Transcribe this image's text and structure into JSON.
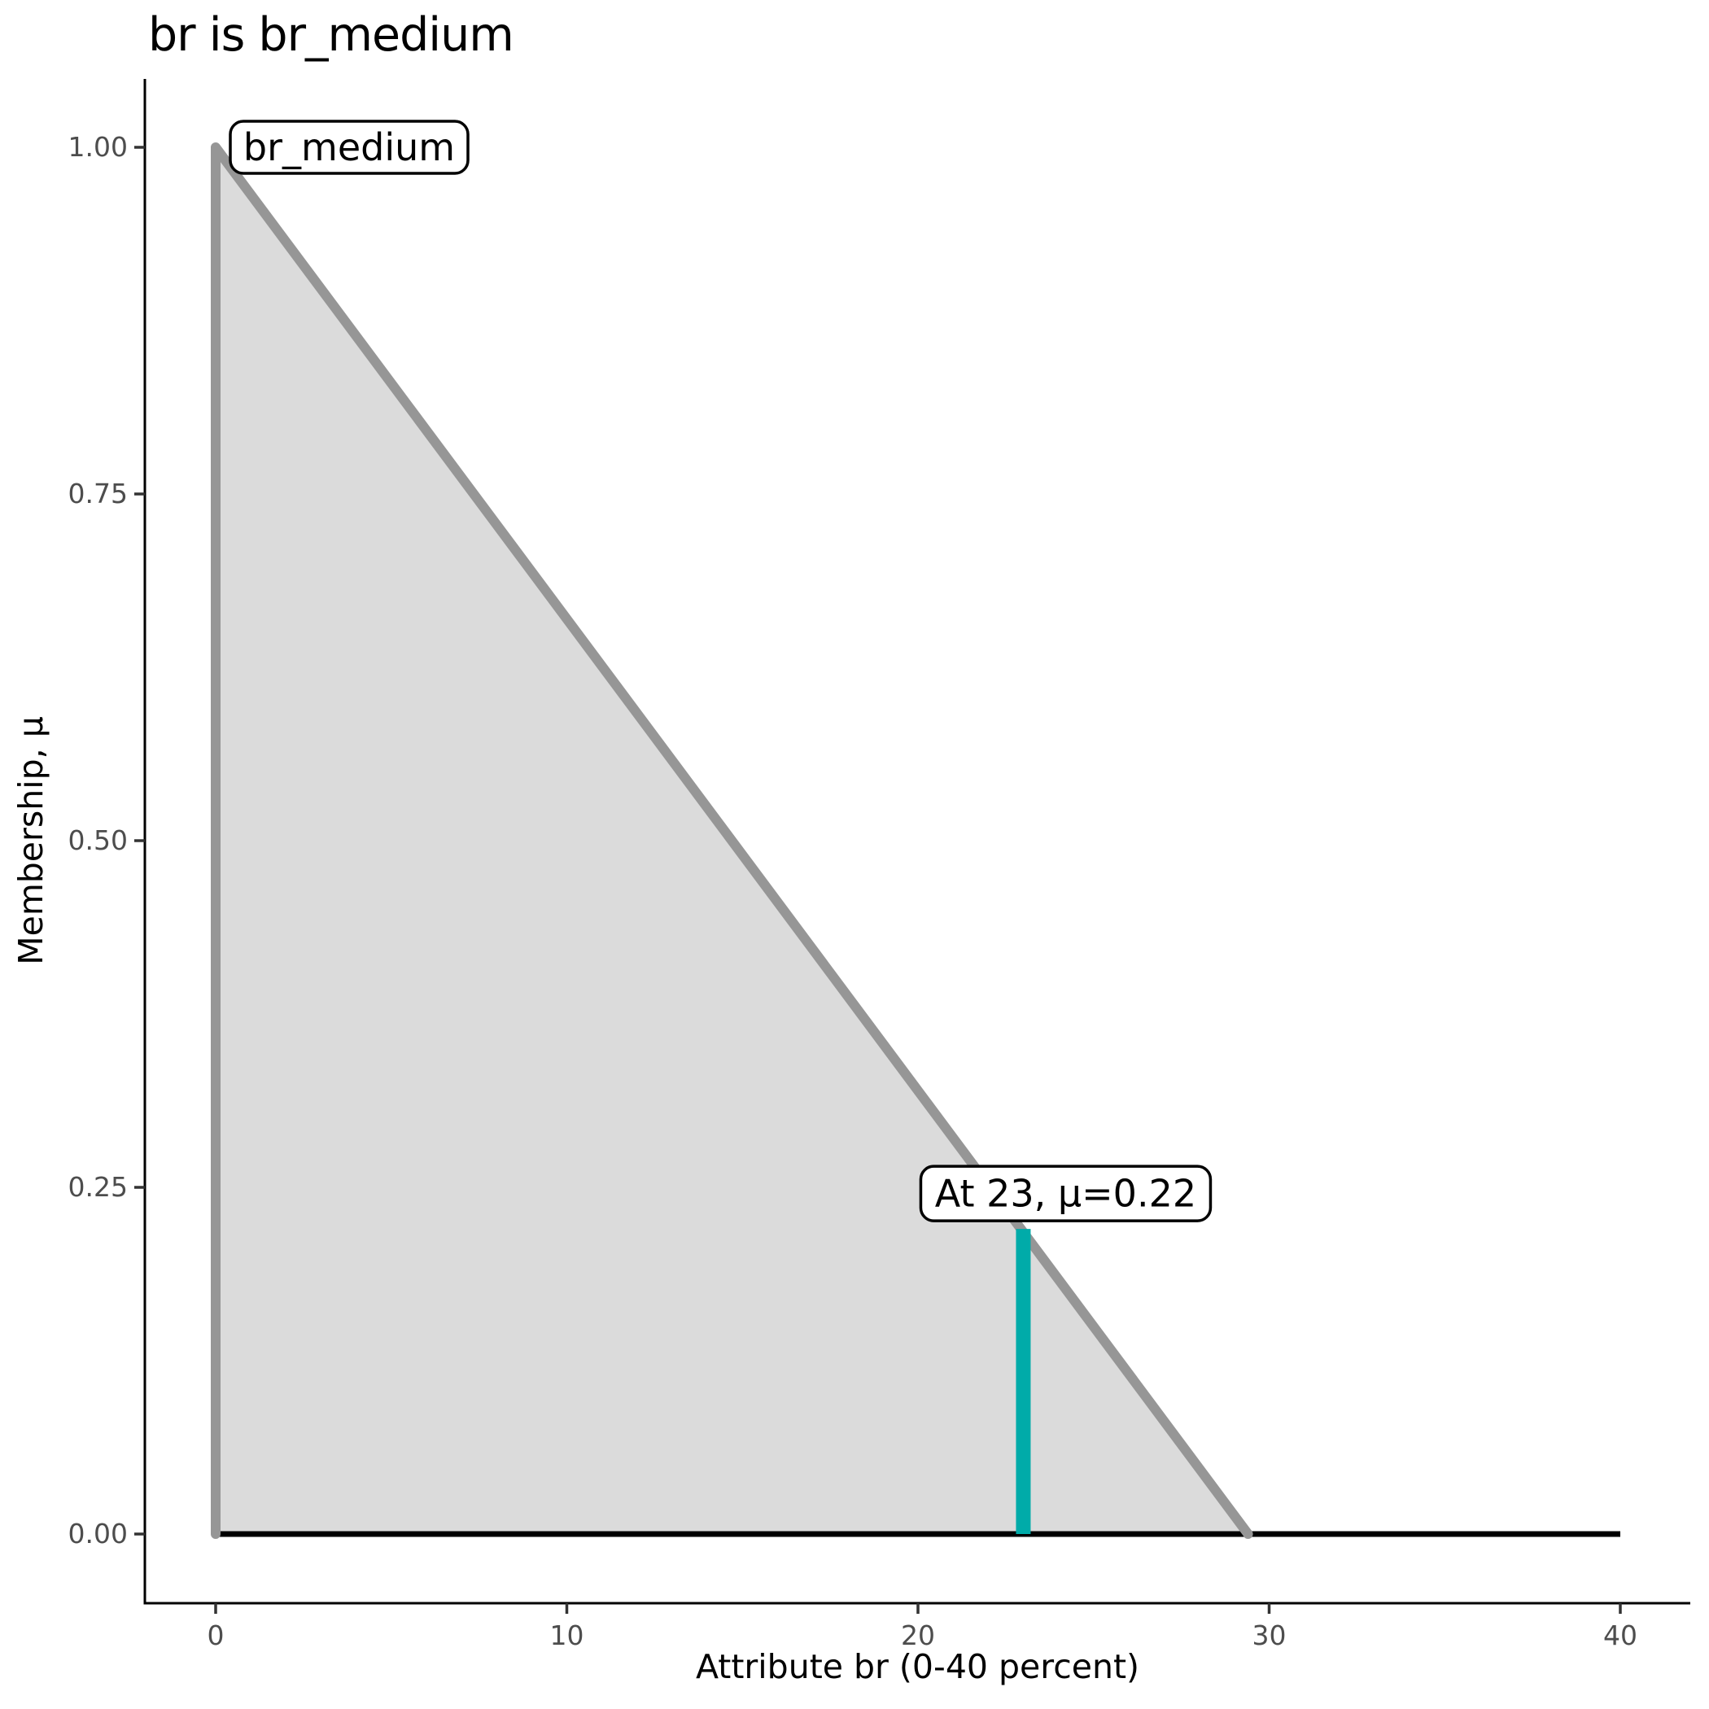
{
  "title": "br is br_medium",
  "chart_data": {
    "type": "area",
    "title": "br is br_medium",
    "xlabel": "Attribute br (0-40 percent)",
    "ylabel": "Membership, μ",
    "xlim": [
      0,
      40
    ],
    "ylim": [
      0,
      1
    ],
    "grid": "off",
    "legend": "none",
    "x_ticks": {
      "values": [
        0,
        10,
        20,
        30,
        40
      ],
      "labels": [
        "0",
        "10",
        "20",
        "30",
        "40"
      ]
    },
    "y_ticks": {
      "values": [
        0,
        0.25,
        0.5,
        0.75,
        1.0
      ],
      "labels": [
        "0.00",
        "0.25",
        "0.50",
        "0.75",
        "1.00"
      ]
    },
    "set_label": "br_medium",
    "membership_function": {
      "name": "br_medium",
      "points_x": [
        0,
        0,
        29.4
      ],
      "points_mu": [
        0,
        1,
        0
      ]
    },
    "universe_baseline": {
      "x_from": 0,
      "x_to": 40,
      "mu": 0
    },
    "annotation": {
      "x": 23,
      "mu": 0.22,
      "label": "At 23, μ=0.22"
    },
    "colors": {
      "membership_line": "#969696",
      "membership_fill": "#DBDBDB",
      "baseline": "#000000",
      "highlight": "#00ABA9",
      "axis": "#000000",
      "tick": "#333333",
      "tick_label": "#4D4D4D",
      "text": "#000000",
      "label_box_fill": "#FFFFFF",
      "label_box_border": "#000000"
    }
  }
}
